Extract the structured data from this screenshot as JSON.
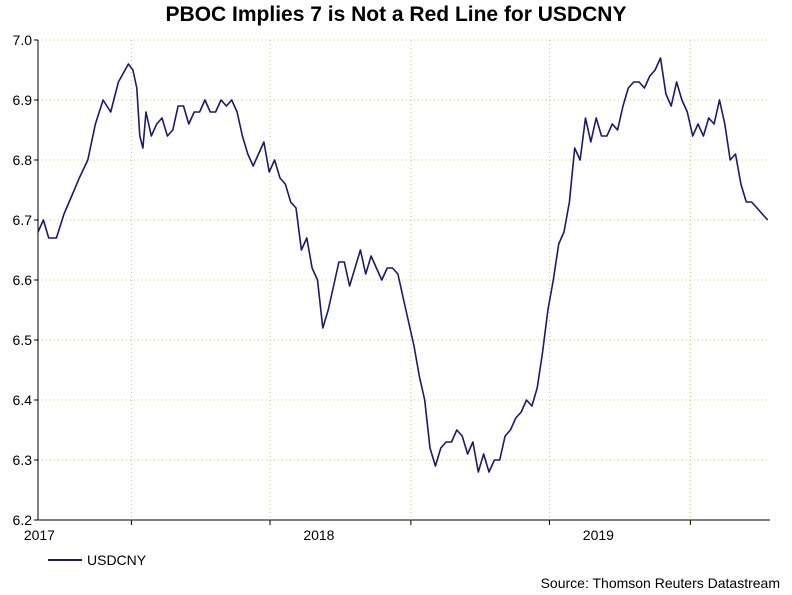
{
  "chart_data": {
    "type": "line",
    "title": "PBOC Implies 7 is Not a Red Line for USDCNY",
    "xlabel": "",
    "ylabel": "",
    "ylim": [
      6.2,
      7.0
    ],
    "xlim": [
      "2016-09-01",
      "2019-04-15"
    ],
    "y_ticks": [
      "6.2",
      "6.3",
      "6.4",
      "6.5",
      "6.6",
      "6.7",
      "6.8",
      "6.9",
      "7.0"
    ],
    "x_ticks": [
      {
        "label": "2017",
        "date": "2017-01-01"
      },
      {
        "label": "2018",
        "date": "2018-01-01"
      },
      {
        "label": "2019",
        "date": "2019-01-01"
      }
    ],
    "grid": true,
    "legend": "bottom-left",
    "series": [
      {
        "name": "USDCNY",
        "color": "#1a1a6e",
        "points": [
          [
            "2016-09-01",
            6.68
          ],
          [
            "2016-09-08",
            6.7
          ],
          [
            "2016-09-15",
            6.67
          ],
          [
            "2016-09-25",
            6.67
          ],
          [
            "2016-10-05",
            6.71
          ],
          [
            "2016-10-15",
            6.74
          ],
          [
            "2016-10-25",
            6.77
          ],
          [
            "2016-11-05",
            6.8
          ],
          [
            "2016-11-15",
            6.86
          ],
          [
            "2016-11-25",
            6.9
          ],
          [
            "2016-12-05",
            6.88
          ],
          [
            "2016-12-15",
            6.93
          ],
          [
            "2016-12-28",
            6.96
          ],
          [
            "2017-01-03",
            6.95
          ],
          [
            "2017-01-08",
            6.92
          ],
          [
            "2017-01-12",
            6.84
          ],
          [
            "2017-01-16",
            6.82
          ],
          [
            "2017-01-20",
            6.88
          ],
          [
            "2017-01-27",
            6.84
          ],
          [
            "2017-02-03",
            6.86
          ],
          [
            "2017-02-10",
            6.87
          ],
          [
            "2017-02-17",
            6.84
          ],
          [
            "2017-02-24",
            6.85
          ],
          [
            "2017-03-03",
            6.89
          ],
          [
            "2017-03-10",
            6.89
          ],
          [
            "2017-03-17",
            6.86
          ],
          [
            "2017-03-24",
            6.88
          ],
          [
            "2017-03-31",
            6.88
          ],
          [
            "2017-04-07",
            6.9
          ],
          [
            "2017-04-14",
            6.88
          ],
          [
            "2017-04-21",
            6.88
          ],
          [
            "2017-04-28",
            6.9
          ],
          [
            "2017-05-05",
            6.89
          ],
          [
            "2017-05-12",
            6.9
          ],
          [
            "2017-05-19",
            6.88
          ],
          [
            "2017-05-26",
            6.84
          ],
          [
            "2017-06-02",
            6.81
          ],
          [
            "2017-06-09",
            6.79
          ],
          [
            "2017-06-16",
            6.81
          ],
          [
            "2017-06-23",
            6.83
          ],
          [
            "2017-06-30",
            6.78
          ],
          [
            "2017-07-07",
            6.8
          ],
          [
            "2017-07-14",
            6.77
          ],
          [
            "2017-07-21",
            6.76
          ],
          [
            "2017-07-28",
            6.73
          ],
          [
            "2017-08-04",
            6.72
          ],
          [
            "2017-08-11",
            6.65
          ],
          [
            "2017-08-18",
            6.67
          ],
          [
            "2017-08-25",
            6.62
          ],
          [
            "2017-09-01",
            6.6
          ],
          [
            "2017-09-08",
            6.52
          ],
          [
            "2017-09-15",
            6.55
          ],
          [
            "2017-09-22",
            6.59
          ],
          [
            "2017-09-29",
            6.63
          ],
          [
            "2017-10-06",
            6.63
          ],
          [
            "2017-10-13",
            6.59
          ],
          [
            "2017-10-20",
            6.62
          ],
          [
            "2017-10-27",
            6.65
          ],
          [
            "2017-11-03",
            6.61
          ],
          [
            "2017-11-10",
            6.64
          ],
          [
            "2017-11-17",
            6.62
          ],
          [
            "2017-11-24",
            6.6
          ],
          [
            "2017-12-01",
            6.62
          ],
          [
            "2017-12-08",
            6.62
          ],
          [
            "2017-12-15",
            6.61
          ],
          [
            "2017-12-22",
            6.57
          ],
          [
            "2017-12-29",
            6.53
          ],
          [
            "2018-01-05",
            6.49
          ],
          [
            "2018-01-12",
            6.44
          ],
          [
            "2018-01-19",
            6.4
          ],
          [
            "2018-01-26",
            6.32
          ],
          [
            "2018-02-02",
            6.29
          ],
          [
            "2018-02-09",
            6.32
          ],
          [
            "2018-02-16",
            6.33
          ],
          [
            "2018-02-23",
            6.33
          ],
          [
            "2018-03-02",
            6.35
          ],
          [
            "2018-03-09",
            6.34
          ],
          [
            "2018-03-16",
            6.31
          ],
          [
            "2018-03-23",
            6.33
          ],
          [
            "2018-03-30",
            6.28
          ],
          [
            "2018-04-06",
            6.31
          ],
          [
            "2018-04-13",
            6.28
          ],
          [
            "2018-04-20",
            6.3
          ],
          [
            "2018-04-27",
            6.3
          ],
          [
            "2018-05-04",
            6.34
          ],
          [
            "2018-05-11",
            6.35
          ],
          [
            "2018-05-18",
            6.37
          ],
          [
            "2018-05-25",
            6.38
          ],
          [
            "2018-06-01",
            6.4
          ],
          [
            "2018-06-08",
            6.39
          ],
          [
            "2018-06-15",
            6.42
          ],
          [
            "2018-06-22",
            6.48
          ],
          [
            "2018-06-29",
            6.55
          ],
          [
            "2018-07-06",
            6.6
          ],
          [
            "2018-07-13",
            6.66
          ],
          [
            "2018-07-20",
            6.68
          ],
          [
            "2018-07-27",
            6.73
          ],
          [
            "2018-08-03",
            6.82
          ],
          [
            "2018-08-10",
            6.8
          ],
          [
            "2018-08-17",
            6.87
          ],
          [
            "2018-08-24",
            6.83
          ],
          [
            "2018-08-31",
            6.87
          ],
          [
            "2018-09-07",
            6.84
          ],
          [
            "2018-09-14",
            6.84
          ],
          [
            "2018-09-21",
            6.86
          ],
          [
            "2018-09-28",
            6.85
          ],
          [
            "2018-10-05",
            6.89
          ],
          [
            "2018-10-12",
            6.92
          ],
          [
            "2018-10-19",
            6.93
          ],
          [
            "2018-10-26",
            6.93
          ],
          [
            "2018-11-02",
            6.92
          ],
          [
            "2018-11-09",
            6.94
          ],
          [
            "2018-11-16",
            6.95
          ],
          [
            "2018-11-23",
            6.97
          ],
          [
            "2018-11-30",
            6.91
          ],
          [
            "2018-12-07",
            6.89
          ],
          [
            "2018-12-14",
            6.93
          ],
          [
            "2018-12-21",
            6.9
          ],
          [
            "2018-12-28",
            6.88
          ],
          [
            "2019-01-04",
            6.84
          ],
          [
            "2019-01-11",
            6.86
          ],
          [
            "2019-01-18",
            6.84
          ],
          [
            "2019-01-25",
            6.87
          ],
          [
            "2019-02-01",
            6.86
          ],
          [
            "2019-02-08",
            6.9
          ],
          [
            "2019-02-15",
            6.86
          ],
          [
            "2019-02-22",
            6.8
          ],
          [
            "2019-03-01",
            6.81
          ],
          [
            "2019-03-08",
            6.76
          ],
          [
            "2019-03-15",
            6.73
          ],
          [
            "2019-03-22",
            6.73
          ],
          [
            "2019-03-29",
            6.72
          ],
          [
            "2019-04-05",
            6.71
          ],
          [
            "2019-04-12",
            6.7
          ]
        ]
      }
    ]
  },
  "source": "Source: Thomson Reuters Datastream"
}
